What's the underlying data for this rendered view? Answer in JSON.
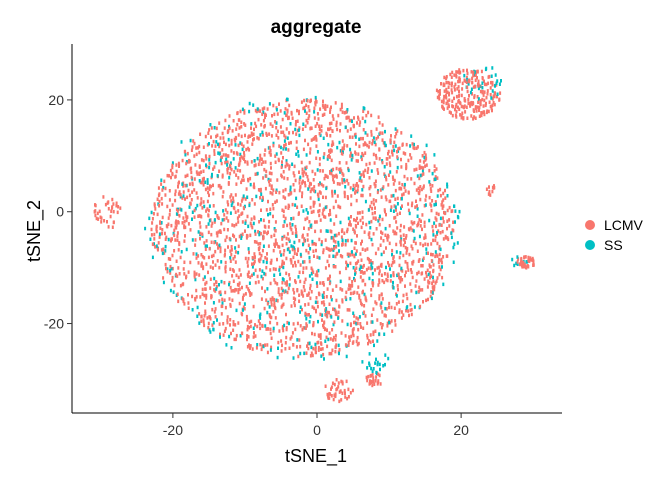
{
  "chart_data": {
    "type": "scatter",
    "title": "aggregate",
    "xlabel": "tSNE_1",
    "ylabel": "tSNE_2",
    "xlim": [
      -34,
      34
    ],
    "ylim": [
      -36,
      30
    ],
    "x_ticks": [
      -20,
      0,
      20
    ],
    "y_ticks": [
      -20,
      0,
      20
    ],
    "x_tick_labels": [
      "-20",
      "0",
      "20"
    ],
    "y_tick_labels": [
      "-20",
      "0",
      "20"
    ],
    "grid": false,
    "legend_position": "right",
    "series": [
      {
        "name": "LCMV",
        "color": "#F8766D",
        "clusters": [
          {
            "cx": -2,
            "cy": -3,
            "rx": 21,
            "ry": 23,
            "n": 2300
          },
          {
            "cx": 21,
            "cy": 21,
            "rx": 4.5,
            "ry": 4.5,
            "n": 230
          },
          {
            "cx": 29,
            "cy": -9,
            "rx": 1.3,
            "ry": 1.1,
            "n": 45
          },
          {
            "cx": -29,
            "cy": 0,
            "rx": 2,
            "ry": 3,
            "n": 35
          },
          {
            "cx": 3,
            "cy": -32,
            "rx": 2,
            "ry": 2,
            "n": 40
          },
          {
            "cx": 8,
            "cy": -30,
            "rx": 1.2,
            "ry": 1.2,
            "n": 25
          },
          {
            "cx": 24,
            "cy": 4,
            "rx": 0.8,
            "ry": 1.2,
            "n": 10
          }
        ]
      },
      {
        "name": "SS",
        "color": "#00BFC4",
        "clusters": [
          {
            "cx": -2,
            "cy": -3,
            "rx": 22,
            "ry": 24,
            "n": 520
          },
          {
            "cx": 23,
            "cy": 23,
            "rx": 3,
            "ry": 3,
            "n": 30
          },
          {
            "cx": 8,
            "cy": -27,
            "rx": 2,
            "ry": 2,
            "n": 20
          },
          {
            "cx": 28,
            "cy": -9,
            "rx": 1.2,
            "ry": 1,
            "n": 8
          }
        ]
      }
    ]
  }
}
